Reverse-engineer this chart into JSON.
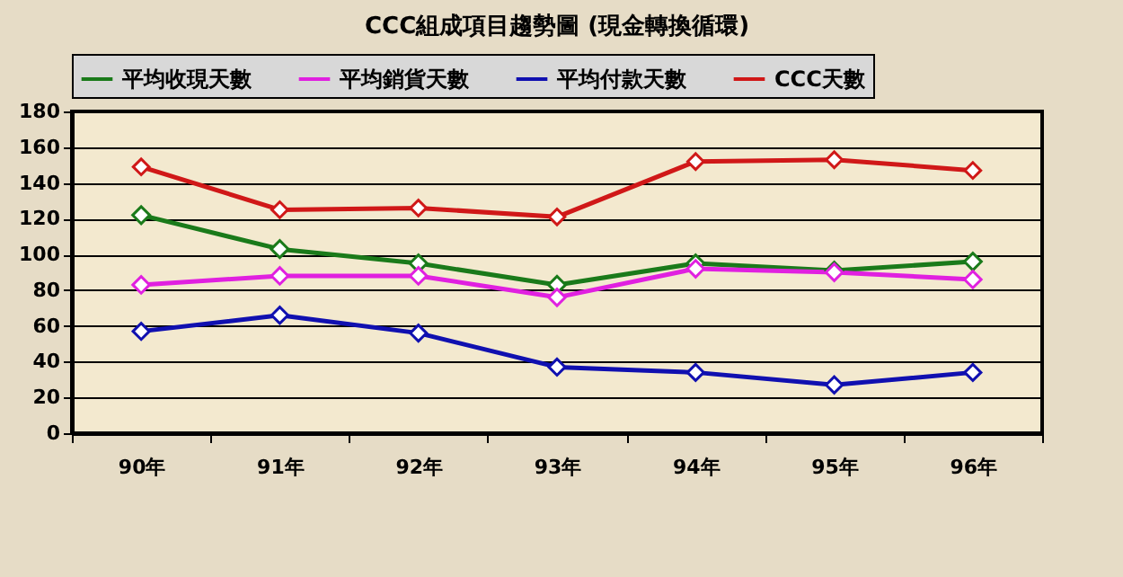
{
  "chart_data": {
    "type": "line",
    "title": "CCC組成項目趨勢圖 (現金轉換循環)",
    "categories": [
      "90年",
      "91年",
      "92年",
      "93年",
      "94年",
      "95年",
      "96年"
    ],
    "series": [
      {
        "name": "平均收現天數",
        "color": "#1a7a1a",
        "values": [
          122,
          103,
          95,
          83,
          95,
          91,
          96
        ]
      },
      {
        "name": "平均銷貨天數",
        "color": "#e020e0",
        "values": [
          83,
          88,
          88,
          76,
          92,
          90,
          86
        ]
      },
      {
        "name": "平均付款天數",
        "color": "#1010b0",
        "values": [
          57,
          66,
          56,
          37,
          34,
          27,
          34
        ]
      },
      {
        "name": "CCC天數",
        "color": "#d01818",
        "values": [
          149,
          125,
          126,
          121,
          152,
          153,
          147
        ]
      }
    ],
    "ylim": [
      0,
      180
    ],
    "yticks": [
      0,
      20,
      40,
      60,
      80,
      100,
      120,
      140,
      160,
      180
    ],
    "grid": "y",
    "legend": "top",
    "marker": "diamond",
    "line_style": "solid"
  }
}
